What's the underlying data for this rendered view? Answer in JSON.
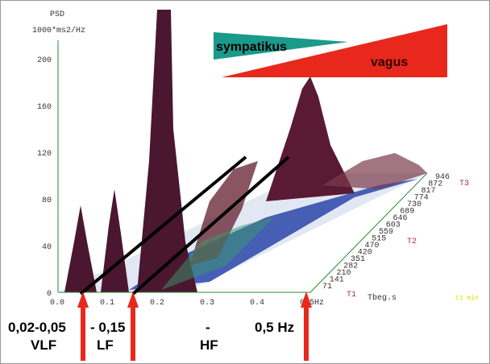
{
  "plot": {
    "y_title": "PSD",
    "y_unit": "1000*ms2/Hz",
    "yticks": [
      "0",
      "40",
      "80",
      "120",
      "160",
      "200"
    ],
    "xticks": [
      "0.0",
      "0.1",
      "0.2",
      "0.3",
      "0.4",
      "0.5Hz"
    ],
    "time_labels": [
      "946",
      "872",
      "817",
      "774",
      "730",
      "689",
      "646",
      "603",
      "559",
      "515",
      "470",
      "420",
      "351",
      "282",
      "210",
      "141",
      "71"
    ],
    "trace_labels": [
      "T3",
      "T2",
      "T1"
    ],
    "time_axis": "Tbeg.s",
    "corner_note": "t1 min"
  },
  "balance": {
    "left": "sympatikus",
    "right": "vagus"
  },
  "bands": [
    {
      "range": "0,02-0,05",
      "name": "VLF"
    },
    {
      "range": "- 0,15",
      "name": "LF"
    },
    {
      "range": "-",
      "name": "HF"
    },
    {
      "range": "0,5 Hz"
    }
  ]
}
